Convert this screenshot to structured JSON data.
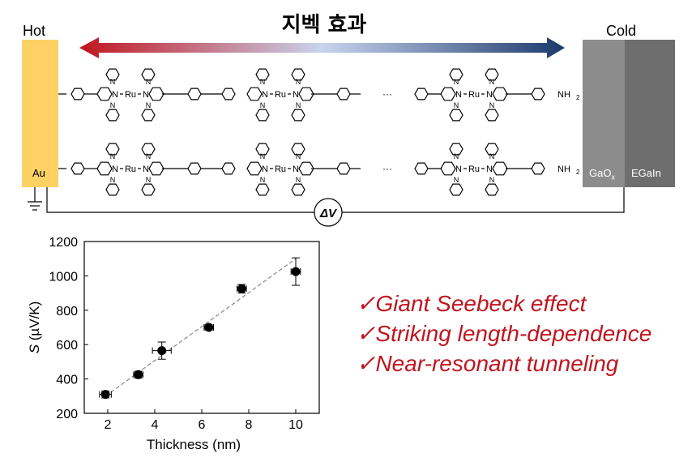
{
  "title": "지벡 효과",
  "hot_label": "Hot",
  "cold_label": "Cold",
  "electrode_left": "Au",
  "electrode_right_1": "GaO",
  "electrode_right_1_sub": "x",
  "electrode_right_2": "EGaIn",
  "voltage_label": "ΔV",
  "ru_label": "Ru",
  "n_label": "N",
  "nh2_label": "NH",
  "nh2_sub": "2",
  "ellipsis": "···",
  "colors": {
    "hot_electrode": "#fdd164",
    "arrow_hot": "#c0151f",
    "arrow_mid": "#c8d4ee",
    "arrow_cold": "#1b3a6b",
    "bullet_text": "#c0151f"
  },
  "bullets": [
    "✓Giant Seebeck effect",
    "✓Striking length-dependence",
    "✓Near-resonant tunneling"
  ],
  "chart_data": {
    "type": "scatter",
    "xlabel": "Thickness (nm)",
    "ylabel_italic": "S",
    "ylabel_rest": " (µV/K)",
    "xlim": [
      1,
      11
    ],
    "ylim": [
      200,
      1200
    ],
    "xticks": [
      2,
      4,
      6,
      8,
      10
    ],
    "yticks": [
      200,
      400,
      600,
      800,
      1000,
      1200
    ],
    "points": [
      {
        "x": 1.9,
        "y": 310,
        "xerr": 0.25,
        "yerr": 20
      },
      {
        "x": 3.3,
        "y": 425,
        "xerr": 0.2,
        "yerr": 20
      },
      {
        "x": 4.3,
        "y": 565,
        "xerr": 0.4,
        "yerr": 50
      },
      {
        "x": 6.3,
        "y": 700,
        "xerr": 0.2,
        "yerr": 15
      },
      {
        "x": 7.7,
        "y": 925,
        "xerr": 0.2,
        "yerr": 25
      },
      {
        "x": 10.0,
        "y": 1025,
        "xerr": 0.2,
        "yerr": 80
      }
    ],
    "fit_line": {
      "x": [
        1.9,
        10.0
      ],
      "y": [
        300,
        1100
      ]
    }
  }
}
